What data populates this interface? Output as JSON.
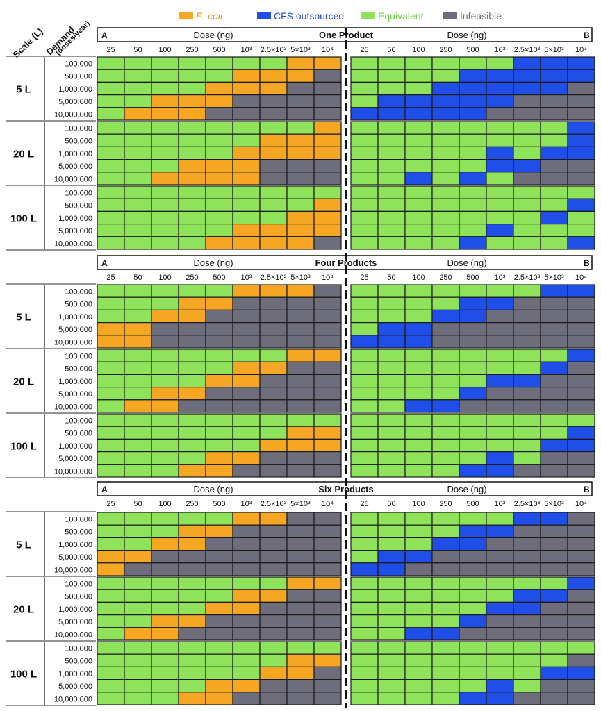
{
  "legend": [
    {
      "key": "E",
      "label": "E. coli",
      "color": "#f5a623",
      "text_color": "#e8961a",
      "italic": true
    },
    {
      "key": "C",
      "label": "CFS outsourced",
      "color": "#1f4fe8",
      "text_color": "#1f4fe8",
      "italic": false
    },
    {
      "key": "Q",
      "label": "Equivalent",
      "color": "#8ee35a",
      "text_color": "#6fd13f",
      "italic": false
    },
    {
      "key": "I",
      "label": "Infeasible",
      "color": "#6e6d7b",
      "text_color": "#6e6d7b",
      "italic": false
    }
  ],
  "axis": {
    "scale_label": "Scale (L)",
    "demand_label": "Demand",
    "demand_unit": "(doses/year)",
    "dose_label": "Dose (ng)",
    "panel_a": "A",
    "panel_b": "B"
  },
  "chart_data": {
    "type": "heatmap",
    "doses": [
      "25",
      "50",
      "100",
      "250",
      "500",
      "10³",
      "2.5×10³",
      "5×10³",
      "10⁴"
    ],
    "scales": [
      "5 L",
      "20 L",
      "100 L"
    ],
    "demands": [
      "100,000",
      "500,000",
      "1,000,000",
      "5,000,000",
      "10,000,000"
    ],
    "legend_codes": {
      "E": "E. coli",
      "C": "CFS outsourced",
      "Q": "Equivalent",
      "I": "Infeasible"
    },
    "sections": [
      {
        "title": "One Product",
        "panel_a": [
          [
            "QQQQQQQEE",
            "QQQQQEEEI",
            "QQQQEEEII",
            "QQEEEIIII",
            "QEEEIIIII",
            "QQQQQQQQE",
            "QQQQQQEEE",
            "QQQQQEEEE",
            "QQQEEEIII",
            "QQEEEEIII",
            "QQQQQQQQQ",
            "QQQQQQQQE",
            "QQQQQQQEE",
            "QQQQQEEEE",
            "QQQQEEEEI"
          ]
        ],
        "panel_b": [
          [
            "QQQQQQCCC",
            "QQQQCCCCC",
            "QQQCCCCCI",
            "QCCCCCIII",
            "CCCCCIIII",
            "QQQQQQQQC",
            "QQQQQQQQC",
            "QQQQQCQCC",
            "QQQQQCCII",
            "QQCQCQIII",
            "QQQQQQQQQ",
            "QQQQQQQQC",
            "QQQQQQQCQ",
            "QQQQQCQQQ",
            "QQQQCQQQC"
          ]
        ]
      },
      {
        "title": "Four Products",
        "panel_a": [
          [
            "QQQQQEEEI",
            "QQQEEIIII",
            "QQEEIIIII",
            "EEIIIIIII",
            "EEIIIIIII",
            "QQQQQQQEE",
            "QQQQQEEII",
            "QQQQEEIII",
            "QQEEIIIII",
            "QEEIIIIII",
            "QQQQQQQQQ",
            "QQQQQQQEE",
            "QQQQQQEEE",
            "QQQQEEIII",
            "QQQEEIIII"
          ]
        ],
        "panel_b": [
          [
            "QQQQQQQCC",
            "QQQQCCIII",
            "QQQCCIIII",
            "QCCIIIIII",
            "CCCIIIIII",
            "QQQQQQQQC",
            "QQQQQQQCI",
            "QQQQQCCII",
            "QQQQCIIII",
            "QQCCIIIII",
            "QQQQQQQQQ",
            "QQQQQQQQC",
            "QQQQQQQCC",
            "QQQQQCQII",
            "QQQQCCIII"
          ]
        ]
      },
      {
        "title": "Six Products",
        "panel_a": [
          [
            "QQQQQEEII",
            "QQQEEIIII",
            "QQEEIIIII",
            "EEIIIIIII",
            "EIIIIIIII",
            "QQQQQQQEE",
            "QQQQQEEII",
            "QQQQEEIII",
            "QQEEIIIII",
            "QEEIIIIII",
            "QQQQQQQQQ",
            "QQQQQQQEE",
            "QQQQQQEEI",
            "QQQQEEIII",
            "QQQEEIIII"
          ]
        ],
        "panel_b": [
          [
            "QQQQQQCCI",
            "QQQQCCIII",
            "QQQCCIIII",
            "QCCIIIIII",
            "CCIIIIIII",
            "QQQQQQQQC",
            "QQQQQQCCI",
            "QQQQQCCII",
            "QQQQCIIII",
            "QQCCIIIII",
            "QQQQQQQQQ",
            "QQQQQQQQI",
            "QQQQQQQCC",
            "QQQQQCQII",
            "QQQQCCIII"
          ]
        ]
      }
    ]
  }
}
